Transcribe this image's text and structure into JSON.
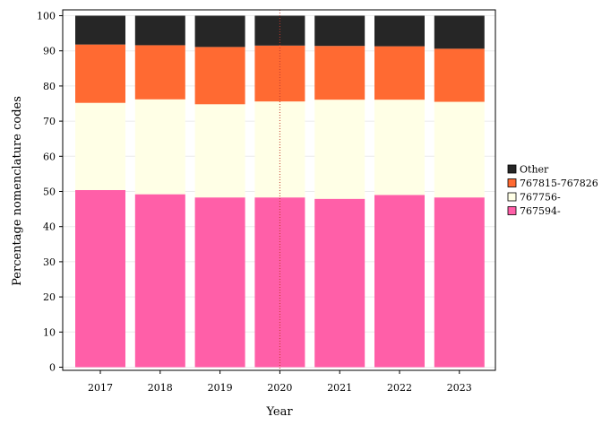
{
  "chart_data": {
    "type": "bar",
    "stacked": true,
    "orientation": "vertical",
    "title": "",
    "xlabel": "Year",
    "ylabel": "Percentage nomenclature codes",
    "categories": [
      "2017",
      "2018",
      "2019",
      "2020",
      "2021",
      "2022",
      "2023"
    ],
    "ylim": [
      0,
      100
    ],
    "yticks": [
      0,
      10,
      20,
      30,
      40,
      50,
      60,
      70,
      80,
      90,
      100
    ],
    "grid": true,
    "legend_position": "right",
    "reference_line": {
      "x": "2020",
      "style": "dotted",
      "color": "#c0392b"
    },
    "series": [
      {
        "name": "767594-",
        "color": "#ff5fa8",
        "values": [
          50.4,
          49.2,
          48.3,
          48.3,
          47.9,
          49.0,
          48.3
        ]
      },
      {
        "name": "767756-",
        "color": "#ffffe6",
        "values": [
          24.8,
          27.0,
          26.5,
          27.3,
          28.2,
          27.1,
          27.2
        ]
      },
      {
        "name": "767815-767826",
        "color": "#ff6a32",
        "values": [
          16.6,
          15.4,
          16.3,
          15.9,
          15.3,
          15.2,
          15.1
        ]
      },
      {
        "name": "Other",
        "color": "#262626",
        "values": [
          8.2,
          8.4,
          8.9,
          8.5,
          8.6,
          8.7,
          9.4
        ]
      }
    ],
    "legend_order": [
      "Other",
      "767815-767826",
      "767756-",
      "767594-"
    ]
  }
}
